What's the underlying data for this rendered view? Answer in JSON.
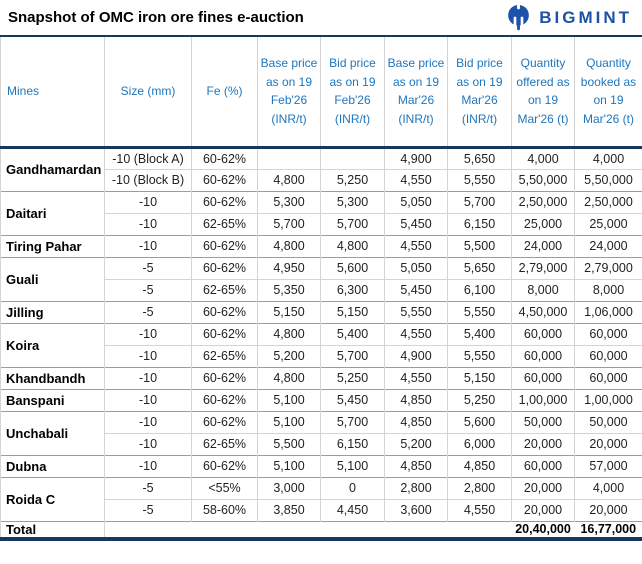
{
  "title": "Snapshot of OMC iron ore fines e-auction",
  "brand": {
    "name": "BIGMINT"
  },
  "colors": {
    "brand": "#1D52A8",
    "header_text": "#2076BC",
    "rule_navy": "#17375D",
    "grid": "#D4D4D4",
    "group_line": "#9C9C9C"
  },
  "table": {
    "columns": [
      "Mines",
      "Size (mm)",
      "Fe (%)",
      "Base price as on 19 Feb'26 (INR/t)",
      "Bid price as on 19 Feb'26 (INR/t)",
      "Base price as on 19 Mar'26 (INR/t)",
      "Bid price as on 19 Mar'26 (INR/t)",
      "Quantity offered as on 19 Mar'26 (t)",
      "Quantity booked as on 19 Mar'26 (t)"
    ],
    "fields": [
      "size",
      "fe",
      "base_feb",
      "bid_feb",
      "base_mar",
      "bid_mar",
      "qty_offered",
      "qty_booked"
    ],
    "groups": [
      {
        "mine": "Gandhamardan",
        "rows": [
          {
            "size": "-10 (Block A)",
            "fe": "60-62%",
            "base_feb": "",
            "bid_feb": "",
            "base_mar": "4,900",
            "bid_mar": "5,650",
            "qty_offered": "4,000",
            "qty_booked": "4,000"
          },
          {
            "size": "-10 (Block B)",
            "fe": "60-62%",
            "base_feb": "4,800",
            "bid_feb": "5,250",
            "base_mar": "4,550",
            "bid_mar": "5,550",
            "qty_offered": "5,50,000",
            "qty_booked": "5,50,000"
          }
        ]
      },
      {
        "mine": "Daitari",
        "rows": [
          {
            "size": "-10",
            "fe": "60-62%",
            "base_feb": "5,300",
            "bid_feb": "5,300",
            "base_mar": "5,050",
            "bid_mar": "5,700",
            "qty_offered": "2,50,000",
            "qty_booked": "2,50,000"
          },
          {
            "size": "-10",
            "fe": "62-65%",
            "base_feb": "5,700",
            "bid_feb": "5,700",
            "base_mar": "5,450",
            "bid_mar": "6,150",
            "qty_offered": "25,000",
            "qty_booked": "25,000"
          }
        ]
      },
      {
        "mine": "Tiring Pahar",
        "rows": [
          {
            "size": "-10",
            "fe": "60-62%",
            "base_feb": "4,800",
            "bid_feb": "4,800",
            "base_mar": "4,550",
            "bid_mar": "5,500",
            "qty_offered": "24,000",
            "qty_booked": "24,000"
          }
        ]
      },
      {
        "mine": "Guali",
        "rows": [
          {
            "size": "-5",
            "fe": "60-62%",
            "base_feb": "4,950",
            "bid_feb": "5,600",
            "base_mar": "5,050",
            "bid_mar": "5,650",
            "qty_offered": "2,79,000",
            "qty_booked": "2,79,000"
          },
          {
            "size": "-5",
            "fe": "62-65%",
            "base_feb": "5,350",
            "bid_feb": "6,300",
            "base_mar": "5,450",
            "bid_mar": "6,100",
            "qty_offered": "8,000",
            "qty_booked": "8,000"
          }
        ]
      },
      {
        "mine": "Jilling",
        "rows": [
          {
            "size": "-5",
            "fe": "60-62%",
            "base_feb": "5,150",
            "bid_feb": "5,150",
            "base_mar": "5,550",
            "bid_mar": "5,550",
            "qty_offered": "4,50,000",
            "qty_booked": "1,06,000"
          }
        ]
      },
      {
        "mine": "Koira",
        "rows": [
          {
            "size": "-10",
            "fe": "60-62%",
            "base_feb": "4,800",
            "bid_feb": "5,400",
            "base_mar": "4,550",
            "bid_mar": "5,400",
            "qty_offered": "60,000",
            "qty_booked": "60,000"
          },
          {
            "size": "-10",
            "fe": "62-65%",
            "base_feb": "5,200",
            "bid_feb": "5,700",
            "base_mar": "4,900",
            "bid_mar": "5,550",
            "qty_offered": "60,000",
            "qty_booked": "60,000"
          }
        ]
      },
      {
        "mine": "Khandbandh",
        "rows": [
          {
            "size": "-10",
            "fe": "60-62%",
            "base_feb": "4,800",
            "bid_feb": "5,250",
            "base_mar": "4,550",
            "bid_mar": "5,150",
            "qty_offered": "60,000",
            "qty_booked": "60,000"
          }
        ]
      },
      {
        "mine": "Banspani",
        "rows": [
          {
            "size": "-10",
            "fe": "60-62%",
            "base_feb": "5,100",
            "bid_feb": "5,450",
            "base_mar": "4,850",
            "bid_mar": "5,250",
            "qty_offered": "1,00,000",
            "qty_booked": "1,00,000"
          }
        ]
      },
      {
        "mine": "Unchabali",
        "rows": [
          {
            "size": "-10",
            "fe": "60-62%",
            "base_feb": "5,100",
            "bid_feb": "5,700",
            "base_mar": "4,850",
            "bid_mar": "5,600",
            "qty_offered": "50,000",
            "qty_booked": "50,000"
          },
          {
            "size": "-10",
            "fe": "62-65%",
            "base_feb": "5,500",
            "bid_feb": "6,150",
            "base_mar": "5,200",
            "bid_mar": "6,000",
            "qty_offered": "20,000",
            "qty_booked": "20,000"
          }
        ]
      },
      {
        "mine": "Dubna",
        "rows": [
          {
            "size": "-10",
            "fe": "60-62%",
            "base_feb": "5,100",
            "bid_feb": "5,100",
            "base_mar": "4,850",
            "bid_mar": "4,850",
            "qty_offered": "60,000",
            "qty_booked": "57,000"
          }
        ]
      },
      {
        "mine": "Roida C",
        "rows": [
          {
            "size": "-5",
            "fe": "<55%",
            "base_feb": "3,000",
            "bid_feb": "0",
            "base_mar": "2,800",
            "bid_mar": "2,800",
            "qty_offered": "20,000",
            "qty_booked": "4,000"
          },
          {
            "size": "-5",
            "fe": "58-60%",
            "base_feb": "3,850",
            "bid_feb": "4,450",
            "base_mar": "3,600",
            "bid_mar": "4,550",
            "qty_offered": "20,000",
            "qty_booked": "20,000"
          }
        ]
      }
    ],
    "total": {
      "label": "Total",
      "qty_offered": "20,40,000",
      "qty_booked": "16,77,000"
    }
  }
}
